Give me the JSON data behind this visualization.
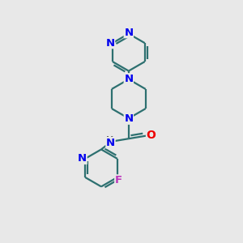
{
  "bg_color": "#e8e8e8",
  "bond_color": "#2d7070",
  "bond_width": 1.6,
  "atom_colors": {
    "N": "#0000ee",
    "O": "#ee0000",
    "F": "#bb33bb",
    "H": "#666666"
  },
  "font_size": 9.5
}
